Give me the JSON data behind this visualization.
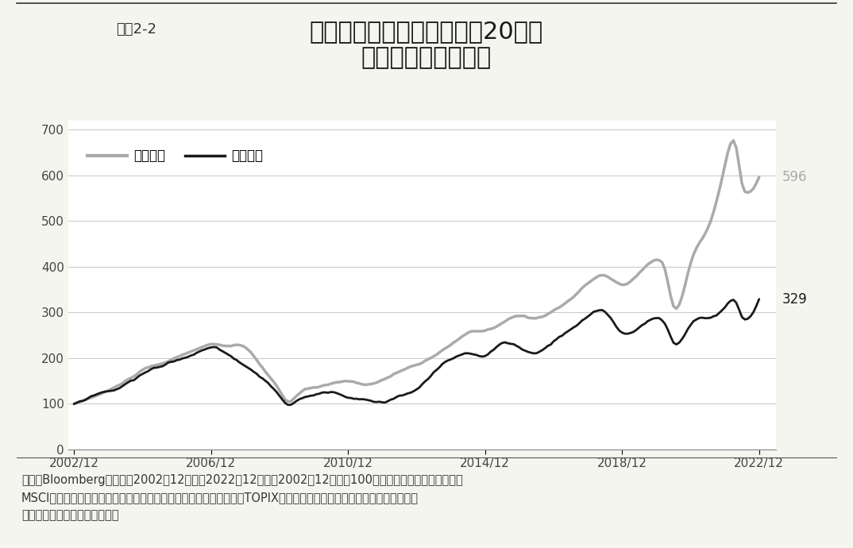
{
  "title_small": "図表2-2",
  "title_large": "世界株式と日本株式の過去20年の\nトータル・リターン",
  "legend_world": "世界株式",
  "legend_japan": "日本株式",
  "world_color": "#aaaaaa",
  "japan_color": "#1a1a1a",
  "world_final": 596,
  "japan_final": 329,
  "yticks": [
    0,
    100,
    200,
    300,
    400,
    500,
    600,
    700
  ],
  "xtick_labels": [
    "2002/12",
    "2006/12",
    "2010/12",
    "2014/12",
    "2018/12",
    "2022/12"
  ],
  "ylim": [
    0,
    720
  ],
  "footnote": "出所：Bloomberg　期間：2002年12月末～2022年12月末（2002年12月末を100として指数化）　世界株式：\nMSCIワールド・インデックスをインベスコにて円換算。日本株式：TOPIX。上記は過去のデータであり、将来の成果を\n保証するものではありません。",
  "bg_color": "#f5f5f0",
  "plot_bg_color": "#ffffff",
  "world_linewidth": 2.5,
  "japan_linewidth": 2.0
}
